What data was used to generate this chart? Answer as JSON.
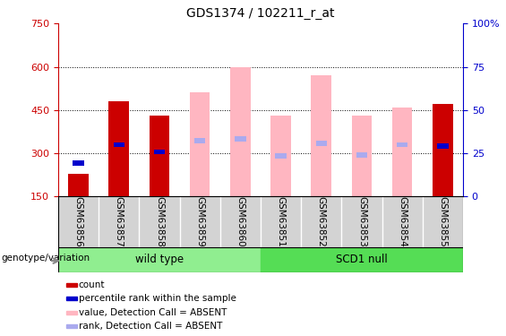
{
  "title": "GDS1374 / 102211_r_at",
  "samples": [
    "GSM63856",
    "GSM63857",
    "GSM63858",
    "GSM63859",
    "GSM63860",
    "GSM63851",
    "GSM63852",
    "GSM63853",
    "GSM63854",
    "GSM63855"
  ],
  "groups": [
    {
      "label": "wild type",
      "start": 0,
      "end": 5,
      "color": "#90EE90"
    },
    {
      "label": "SCD1 null",
      "start": 5,
      "end": 10,
      "color": "#55DD55"
    }
  ],
  "group_label": "genotype/variation",
  "ylim_left": [
    150,
    750
  ],
  "ylim_right": [
    0,
    100
  ],
  "yticks_left": [
    150,
    300,
    450,
    600,
    750
  ],
  "yticks_right": [
    0,
    25,
    50,
    75,
    100
  ],
  "ytick_labels_right": [
    "0",
    "25",
    "50",
    "75",
    "100%"
  ],
  "left_axis_color": "#CC0000",
  "right_axis_color": "#0000CC",
  "count_color": "#CC0000",
  "percentile_color": "#0000CC",
  "value_absent_color": "#FFB6C1",
  "rank_absent_color": "#AAAAEE",
  "count_values": [
    230,
    480,
    430,
    null,
    null,
    null,
    null,
    null,
    null,
    470
  ],
  "percentile_values": [
    265,
    330,
    305,
    null,
    null,
    null,
    null,
    null,
    null,
    325
  ],
  "value_absent": [
    null,
    null,
    null,
    510,
    600,
    430,
    570,
    430,
    460,
    null
  ],
  "rank_absent": [
    null,
    null,
    null,
    345,
    350,
    290,
    335,
    295,
    330,
    null
  ],
  "legend_labels": [
    "count",
    "percentile rank within the sample",
    "value, Detection Call = ABSENT",
    "rank, Detection Call = ABSENT"
  ],
  "legend_colors": [
    "#CC0000",
    "#0000CC",
    "#FFB6C1",
    "#AAAAEE"
  ],
  "grid_lines": [
    300,
    450,
    600
  ],
  "sample_label_bg": "#D3D3D3",
  "bar_width": 0.5
}
